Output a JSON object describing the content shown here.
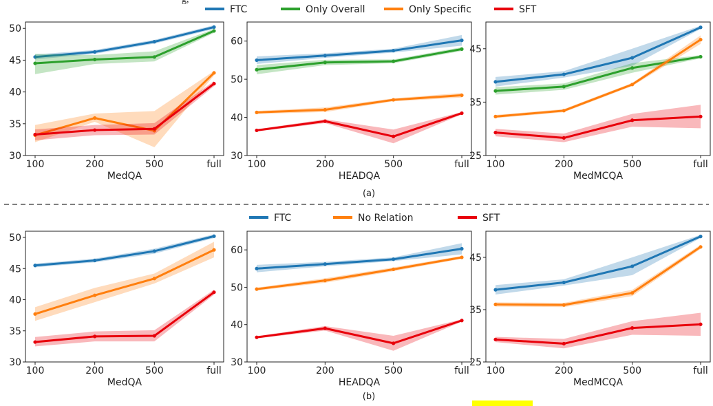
{
  "figure": {
    "top_caption_text": "g,",
    "panel_a_caption": "(a)",
    "panel_b_caption": "(b)"
  },
  "legend_a": [
    {
      "name": "FTC",
      "color": "#1f77b4"
    },
    {
      "name": "Only Overall",
      "color": "#2ca02c"
    },
    {
      "name": "Only Specific",
      "color": "#ff7f0e"
    },
    {
      "name": "SFT",
      "color": "#e8000b"
    }
  ],
  "legend_b": [
    {
      "name": "FTC",
      "color": "#1f77b4"
    },
    {
      "name": "No Relation",
      "color": "#ff7f0e"
    },
    {
      "name": "SFT",
      "color": "#e8000b"
    }
  ],
  "chart_data": [
    {
      "type": "line",
      "panel": "a",
      "xlabel": "MedQA",
      "categories": [
        "100",
        "200",
        "500",
        "full"
      ],
      "ylim": [
        30,
        51
      ],
      "yticks": [
        30,
        35,
        40,
        45,
        50
      ],
      "series": [
        {
          "name": "FTC",
          "color": "#1f77b4",
          "values": [
            45.5,
            46.3,
            47.9,
            50.2
          ],
          "lo": [
            45.1,
            46.0,
            47.6,
            49.9
          ],
          "hi": [
            45.9,
            46.6,
            48.2,
            50.5
          ]
        },
        {
          "name": "Only Overall",
          "color": "#2ca02c",
          "values": [
            44.5,
            45.1,
            45.5,
            49.6
          ],
          "lo": [
            42.8,
            44.4,
            44.8,
            49.3
          ],
          "hi": [
            46.0,
            45.8,
            46.4,
            49.9
          ]
        },
        {
          "name": "Only Specific",
          "color": "#ff7f0e",
          "values": [
            33.2,
            35.9,
            33.9,
            43.0
          ],
          "lo": [
            32.1,
            35.3,
            31.3,
            42.6
          ],
          "hi": [
            34.8,
            36.6,
            37.0,
            43.3
          ]
        },
        {
          "name": "SFT",
          "color": "#e8000b",
          "values": [
            33.3,
            34.0,
            34.2,
            41.3
          ],
          "lo": [
            32.4,
            33.2,
            33.3,
            40.9
          ],
          "hi": [
            34.1,
            34.8,
            35.1,
            41.7
          ]
        }
      ]
    },
    {
      "type": "line",
      "panel": "a",
      "xlabel": "HEADQA",
      "categories": [
        "100",
        "200",
        "500",
        "full"
      ],
      "ylim": [
        30,
        65
      ],
      "yticks": [
        30,
        40,
        50,
        60
      ],
      "series": [
        {
          "name": "FTC",
          "color": "#1f77b4",
          "values": [
            55.0,
            56.2,
            57.5,
            60.2
          ],
          "lo": [
            54.0,
            55.6,
            57.0,
            58.8
          ],
          "hi": [
            56.0,
            56.8,
            58.0,
            61.6
          ]
        },
        {
          "name": "Only Overall",
          "color": "#2ca02c",
          "values": [
            52.5,
            54.4,
            54.7,
            57.9
          ],
          "lo": [
            51.3,
            53.7,
            54.2,
            57.4
          ],
          "hi": [
            53.7,
            55.1,
            55.2,
            58.4
          ]
        },
        {
          "name": "Only Specific",
          "color": "#ff7f0e",
          "values": [
            41.3,
            42.0,
            44.6,
            45.8
          ],
          "lo": [
            40.9,
            41.4,
            44.2,
            45.2
          ],
          "hi": [
            41.7,
            42.6,
            45.0,
            46.4
          ]
        },
        {
          "name": "SFT",
          "color": "#e8000b",
          "values": [
            36.6,
            39.0,
            35.0,
            41.1
          ],
          "lo": [
            36.3,
            38.5,
            33.2,
            40.8
          ],
          "hi": [
            36.9,
            39.5,
            36.8,
            41.4
          ]
        }
      ]
    },
    {
      "type": "line",
      "panel": "a",
      "xlabel": "MedMCQA",
      "categories": [
        "100",
        "200",
        "500",
        "full"
      ],
      "ylim": [
        25,
        50
      ],
      "yticks": [
        25,
        35,
        45
      ],
      "series": [
        {
          "name": "FTC",
          "color": "#1f77b4",
          "values": [
            38.8,
            40.2,
            43.3,
            49.0
          ],
          "lo": [
            37.9,
            39.6,
            41.8,
            48.7
          ],
          "hi": [
            39.7,
            40.8,
            45.0,
            49.3
          ]
        },
        {
          "name": "Only Overall",
          "color": "#2ca02c",
          "values": [
            37.1,
            37.9,
            41.4,
            43.5
          ],
          "lo": [
            36.4,
            37.3,
            40.5,
            43.2
          ],
          "hi": [
            37.8,
            38.5,
            42.3,
            43.8
          ]
        },
        {
          "name": "Only Specific",
          "color": "#ff7f0e",
          "values": [
            32.3,
            33.4,
            38.3,
            46.7
          ],
          "lo": [
            32.0,
            33.1,
            38.0,
            45.9
          ],
          "hi": [
            32.6,
            33.7,
            38.6,
            47.5
          ]
        },
        {
          "name": "SFT",
          "color": "#e8000b",
          "values": [
            29.3,
            28.3,
            31.6,
            32.3
          ],
          "lo": [
            28.6,
            27.5,
            30.4,
            30.1
          ],
          "hi": [
            30.0,
            29.1,
            32.8,
            34.5
          ]
        }
      ]
    },
    {
      "type": "line",
      "panel": "b",
      "xlabel": "MedQA",
      "categories": [
        "100",
        "200",
        "500",
        "full"
      ],
      "ylim": [
        30,
        51
      ],
      "yticks": [
        30,
        35,
        40,
        45,
        50
      ],
      "series": [
        {
          "name": "FTC",
          "color": "#1f77b4",
          "values": [
            45.5,
            46.3,
            47.8,
            50.2
          ],
          "lo": [
            45.2,
            46.0,
            47.4,
            49.9
          ],
          "hi": [
            45.8,
            46.6,
            48.2,
            50.5
          ]
        },
        {
          "name": "No Relation",
          "color": "#ff7f0e",
          "values": [
            37.7,
            40.7,
            43.4,
            48.0
          ],
          "lo": [
            36.6,
            39.6,
            42.6,
            46.8
          ],
          "hi": [
            38.8,
            41.9,
            44.2,
            49.3
          ]
        },
        {
          "name": "SFT",
          "color": "#e8000b",
          "values": [
            33.2,
            34.1,
            34.2,
            41.2
          ],
          "lo": [
            32.5,
            33.3,
            33.3,
            40.8
          ],
          "hi": [
            34.0,
            34.9,
            35.1,
            41.6
          ]
        }
      ]
    },
    {
      "type": "line",
      "panel": "b",
      "xlabel": "HEADQA",
      "categories": [
        "100",
        "200",
        "500",
        "full"
      ],
      "ylim": [
        30,
        65
      ],
      "yticks": [
        30,
        40,
        50,
        60
      ],
      "series": [
        {
          "name": "FTC",
          "color": "#1f77b4",
          "values": [
            55.0,
            56.2,
            57.5,
            60.3
          ],
          "lo": [
            54.0,
            55.6,
            57.0,
            58.8
          ],
          "hi": [
            56.0,
            56.8,
            58.0,
            61.8
          ]
        },
        {
          "name": "No Relation",
          "color": "#ff7f0e",
          "values": [
            49.5,
            51.8,
            54.8,
            58.0
          ],
          "lo": [
            49.1,
            51.2,
            54.3,
            57.6
          ],
          "hi": [
            49.9,
            52.4,
            55.3,
            58.4
          ]
        },
        {
          "name": "SFT",
          "color": "#e8000b",
          "values": [
            36.6,
            39.0,
            35.0,
            41.1
          ],
          "lo": [
            36.3,
            38.4,
            33.0,
            40.8
          ],
          "hi": [
            36.9,
            39.6,
            37.0,
            41.4
          ]
        }
      ]
    },
    {
      "type": "line",
      "panel": "b",
      "xlabel": "MedMCQA",
      "categories": [
        "100",
        "200",
        "500",
        "full"
      ],
      "ylim": [
        25,
        50
      ],
      "yticks": [
        25,
        35,
        45
      ],
      "series": [
        {
          "name": "FTC",
          "color": "#1f77b4",
          "values": [
            38.8,
            40.2,
            43.3,
            49.0
          ],
          "lo": [
            37.9,
            39.6,
            41.6,
            48.7
          ],
          "hi": [
            39.7,
            40.8,
            45.0,
            49.3
          ]
        },
        {
          "name": "No Relation",
          "color": "#ff7f0e",
          "values": [
            36.0,
            35.9,
            38.2,
            47.0
          ],
          "lo": [
            35.6,
            35.5,
            37.6,
            46.6
          ],
          "hi": [
            36.4,
            36.3,
            38.8,
            47.4
          ]
        },
        {
          "name": "SFT",
          "color": "#e8000b",
          "values": [
            29.3,
            28.5,
            31.5,
            32.2
          ],
          "lo": [
            28.8,
            27.6,
            30.2,
            30.0
          ],
          "hi": [
            29.8,
            29.4,
            32.8,
            34.4
          ]
        }
      ]
    }
  ]
}
